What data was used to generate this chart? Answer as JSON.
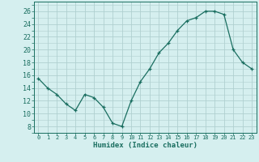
{
  "x": [
    0,
    1,
    2,
    3,
    4,
    5,
    6,
    7,
    8,
    9,
    10,
    11,
    12,
    13,
    14,
    15,
    16,
    17,
    18,
    19,
    20,
    21,
    22,
    23
  ],
  "y": [
    15.5,
    14.0,
    13.0,
    11.5,
    10.5,
    13.0,
    12.5,
    11.0,
    8.5,
    8.0,
    12.0,
    15.0,
    17.0,
    19.5,
    21.0,
    23.0,
    24.5,
    25.0,
    26.0,
    26.0,
    25.5,
    20.0,
    18.0,
    17.0
  ],
  "line_color": "#1a6e60",
  "marker": "+",
  "marker_size": 3,
  "bg_color": "#d5efef",
  "grid_color": "#b0d0d0",
  "xlabel": "Humidex (Indice chaleur)",
  "ylabel_ticks": [
    8,
    10,
    12,
    14,
    16,
    18,
    20,
    22,
    24,
    26
  ],
  "xtick_labels": [
    "0",
    "1",
    "2",
    "3",
    "4",
    "5",
    "6",
    "7",
    "8",
    "9",
    "10",
    "11",
    "12",
    "13",
    "14",
    "15",
    "16",
    "17",
    "18",
    "19",
    "20",
    "21",
    "22",
    "23"
  ],
  "ylim": [
    7.0,
    27.5
  ],
  "xlim": [
    -0.5,
    23.5
  ]
}
